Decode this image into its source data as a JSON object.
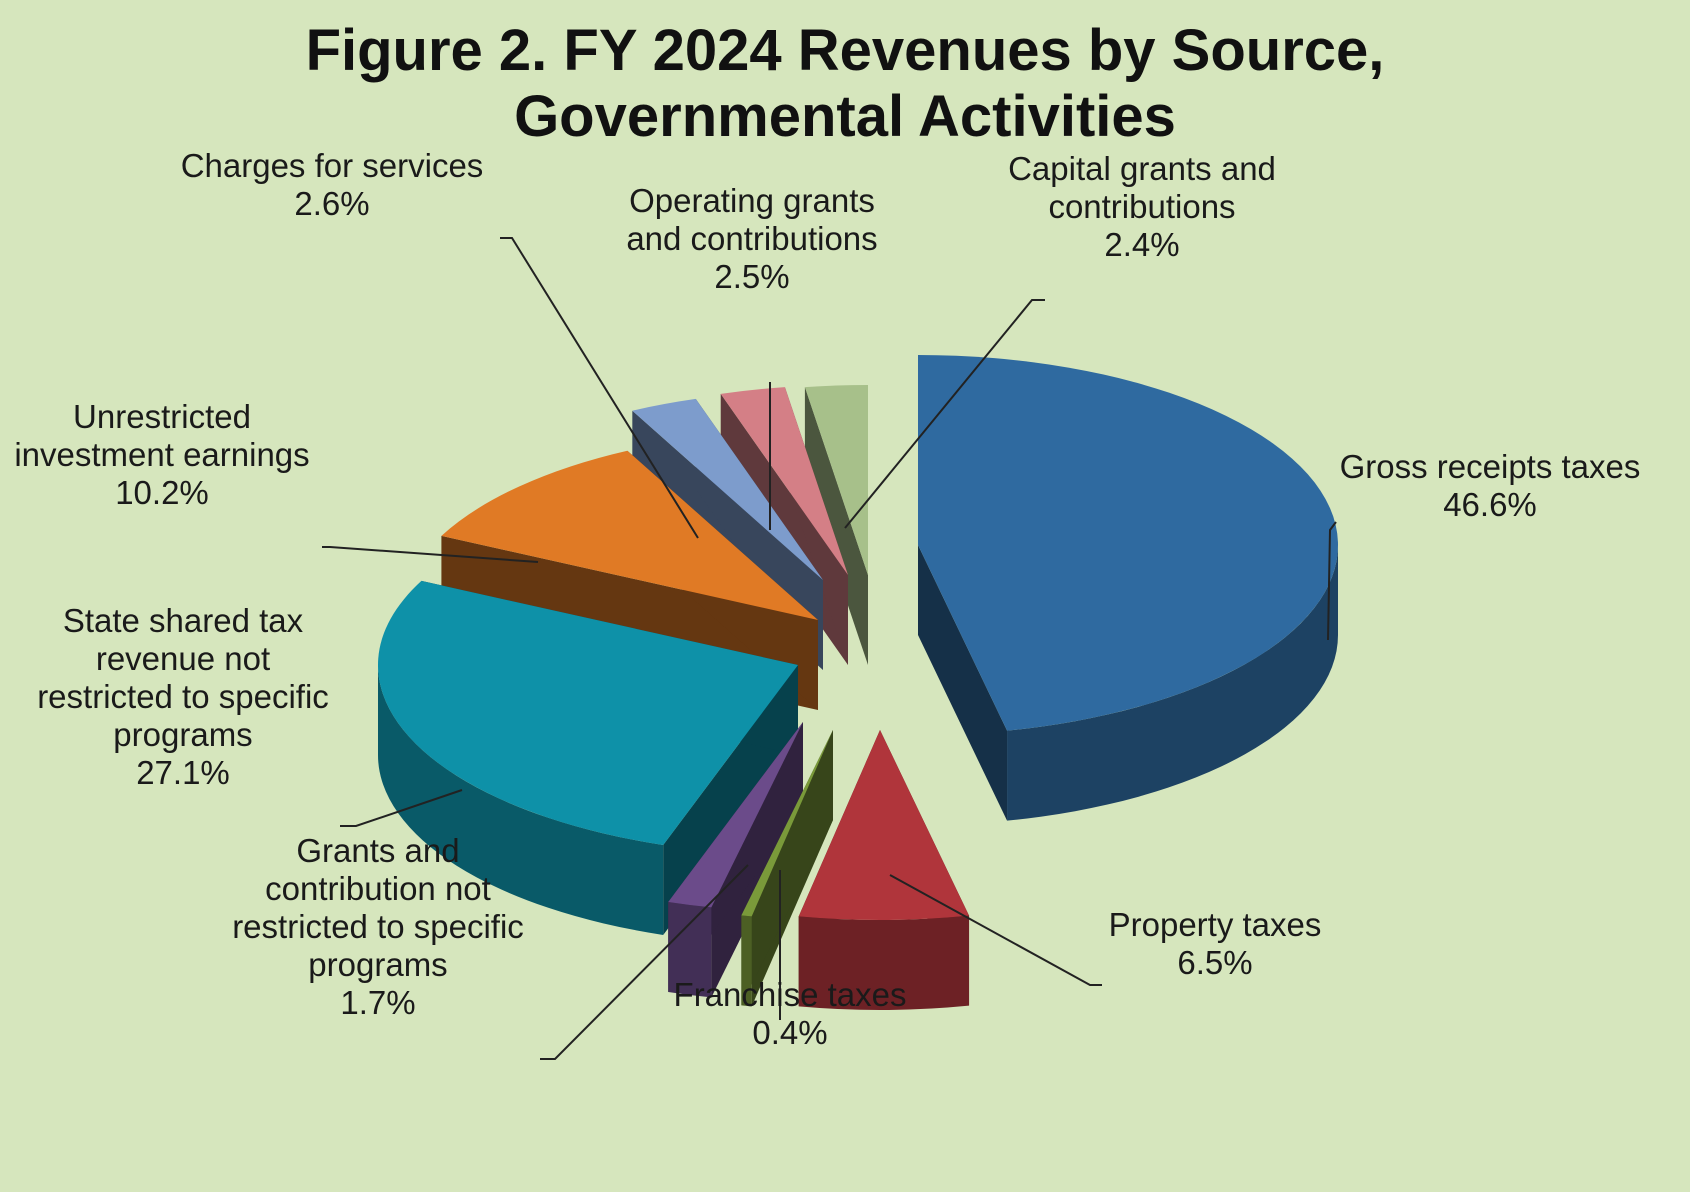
{
  "chart_data": {
    "type": "pie",
    "title_line1": "Figure 2. FY 2024 Revenues by Source,",
    "title_line2": "Governmental Activities",
    "slices": [
      {
        "label_lines": [
          "Gross receipts taxes"
        ],
        "value": 46.6,
        "value_label": "46.6%",
        "color": "#2f6aa0"
      },
      {
        "label_lines": [
          "Property taxes"
        ],
        "value": 6.5,
        "value_label": "6.5%",
        "color": "#b0353b"
      },
      {
        "label_lines": [
          "Franchise taxes"
        ],
        "value": 0.4,
        "value_label": "0.4%",
        "color": "#7a9a3a"
      },
      {
        "label_lines": [
          "Grants and",
          "contribution not",
          "restricted to specific",
          "programs"
        ],
        "value": 1.7,
        "value_label": "1.7%",
        "color": "#6b4b8a"
      },
      {
        "label_lines": [
          "State shared tax",
          "revenue not",
          "restricted to specific",
          "programs"
        ],
        "value": 27.1,
        "value_label": "27.1%",
        "color": "#0e91a8"
      },
      {
        "label_lines": [
          "Unrestricted",
          "investment earnings"
        ],
        "value": 10.2,
        "value_label": "10.2%",
        "color": "#e07a25"
      },
      {
        "label_lines": [
          "Charges for services"
        ],
        "value": 2.6,
        "value_label": "2.6%",
        "color": "#7d9ccc"
      },
      {
        "label_lines": [
          "Operating grants",
          "and contributions"
        ],
        "value": 2.5,
        "value_label": "2.5%",
        "color": "#d47f86"
      },
      {
        "label_lines": [
          "Capital grants and",
          "contributions"
        ],
        "value": 2.4,
        "value_label": "2.4%",
        "color": "#a7c08a"
      }
    ]
  }
}
